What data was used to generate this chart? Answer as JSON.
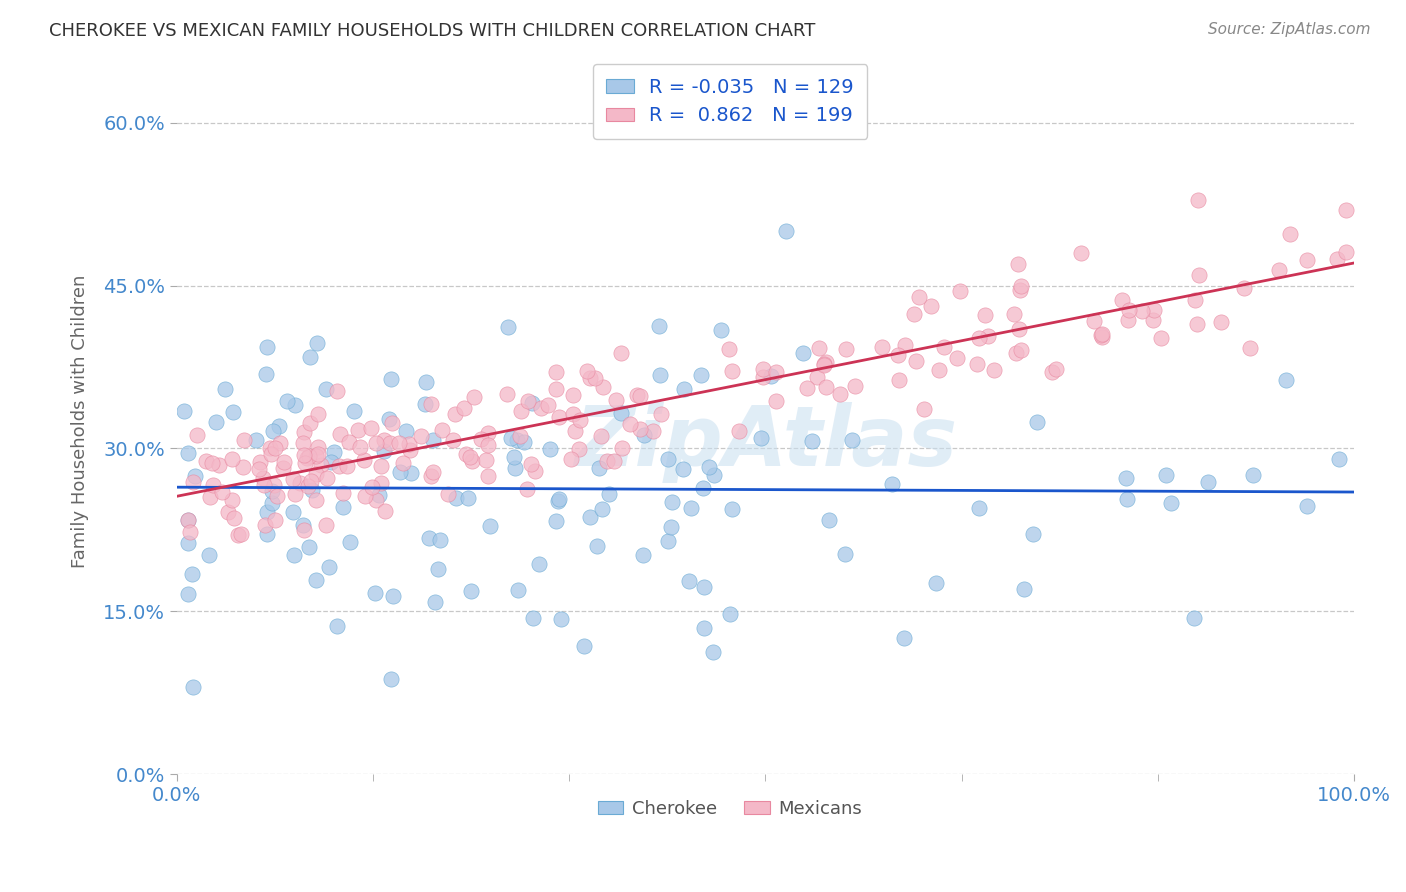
{
  "title": "CHEROKEE VS MEXICAN FAMILY HOUSEHOLDS WITH CHILDREN CORRELATION CHART",
  "source": "Source: ZipAtlas.com",
  "ylabel": "Family Households with Children",
  "cherokee_R": -0.035,
  "cherokee_N": 129,
  "mexican_R": 0.862,
  "mexican_N": 199,
  "xlim": [
    0.0,
    1.0
  ],
  "ylim": [
    0.0,
    0.65
  ],
  "yticks": [
    0.0,
    0.15,
    0.3,
    0.45,
    0.6
  ],
  "ytick_labels": [
    "0.0%",
    "15.0%",
    "30.0%",
    "45.0%",
    "60.0%"
  ],
  "xtick_labels": [
    "0.0%",
    "100.0%"
  ],
  "cherokee_color": "#a8c8e8",
  "cherokee_edge_color": "#6aaad4",
  "cherokee_line_color": "#1a56cc",
  "mexican_color": "#f4b8c8",
  "mexican_edge_color": "#e888a0",
  "mexican_line_color": "#cc3355",
  "background_color": "#ffffff",
  "grid_color": "#c8c8c8",
  "title_color": "#333333",
  "axis_label_color": "#4488cc",
  "ylabel_color": "#666666",
  "watermark": "ZipAtlas",
  "watermark_color": "#c8dff0"
}
